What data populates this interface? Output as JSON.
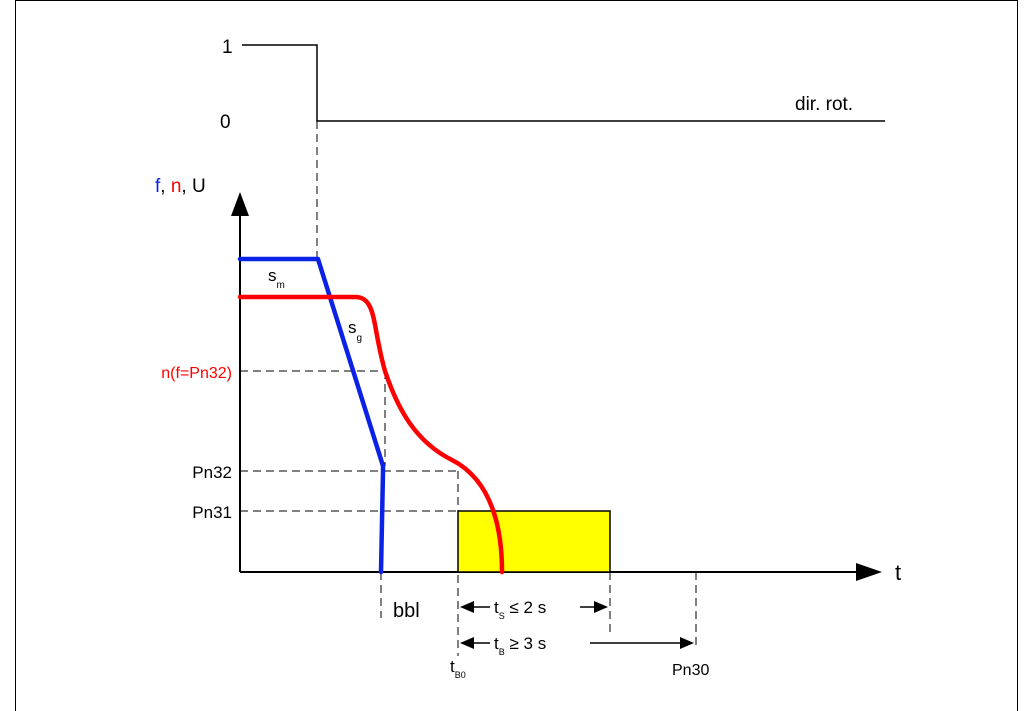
{
  "signal": {
    "level_high": "1",
    "level_low": "0",
    "name": "dir. rot."
  },
  "y_axis_label": {
    "f": "f",
    "sep1": ", ",
    "n": "n",
    "sep2": ", ",
    "u": "U"
  },
  "x_axis_label": "t",
  "levels": {
    "n_f_pn32": "n(f=Pn32)",
    "pn32": "Pn32",
    "pn31": "Pn31"
  },
  "curve_labels": {
    "s_m_base": "s",
    "s_m_sub": "m",
    "s_g_base": "s",
    "s_g_sub": "g"
  },
  "markers": {
    "bbl": "bbl",
    "t_b0_base": "t",
    "t_b0_sub": "B0",
    "pn30": "Pn30"
  },
  "intervals": {
    "t_s_base": "t",
    "t_s_sub": "S",
    "t_s_rest": " ≤ 2 s",
    "t_b_base": "t",
    "t_b_sub": "B",
    "t_b_rest": " ≥ 3 s"
  },
  "colors": {
    "frequency": "#0a22e6",
    "speed": "#ff0000",
    "braking_zone": "#ffff00",
    "ink": "#000000"
  }
}
